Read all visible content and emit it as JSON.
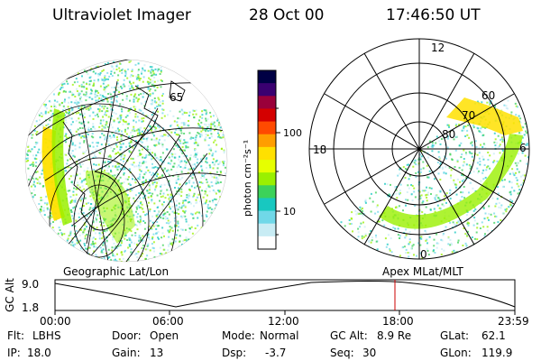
{
  "header": {
    "instrument": "Ultraviolet Imager",
    "date": "28 Oct 00",
    "time": "17:46:50 UT"
  },
  "panels": {
    "left_label": "Geographic Lat/Lon",
    "right_label": "Apex  MLat/MLT",
    "left_grid_label": "65"
  },
  "colorbar": {
    "unit_label": "photon cm⁻²s⁻¹",
    "ticks": [
      "100",
      "10"
    ],
    "colors": [
      "#000044",
      "#3a0070",
      "#9a003a",
      "#d40000",
      "#ff4a00",
      "#ff9e00",
      "#ffe000",
      "#e6ff00",
      "#9af000",
      "#3cd25a",
      "#18c8c0",
      "#70d8e8",
      "#c8ecf4",
      "#ffffff"
    ]
  },
  "polar_plot": {
    "mlt_labels": [
      "12",
      "18",
      "6",
      "0"
    ],
    "lat_labels": [
      "60",
      "70",
      "80"
    ]
  },
  "altitude_plot": {
    "ylabel": "GC Alt",
    "yticks": [
      "9.0",
      "1.8"
    ],
    "xticks": [
      "00:00",
      "06:00",
      "12:00",
      "18:00",
      "23:59"
    ],
    "marker_time": "17:46:50",
    "marker_color": "#cc0000"
  },
  "status": {
    "flt_label": "Flt:",
    "flt_value": "LBHS",
    "ip_label": "IP:",
    "ip_value": "18.0",
    "door_label": "Door:",
    "door_value": "Open",
    "gain_label": "Gain:",
    "gain_value": "13",
    "mode_label": "Mode:",
    "mode_value": "Normal",
    "dsp_label": "Dsp:",
    "dsp_value": "-3.7",
    "gcalt_label": "GC Alt:",
    "gcalt_value": "8.9 Re",
    "seq_label": "Seq:",
    "seq_value": "30",
    "glat_label": "GLat:",
    "glat_value": "62.1",
    "glon_label": "GLon:",
    "glon_value": "119.9"
  }
}
